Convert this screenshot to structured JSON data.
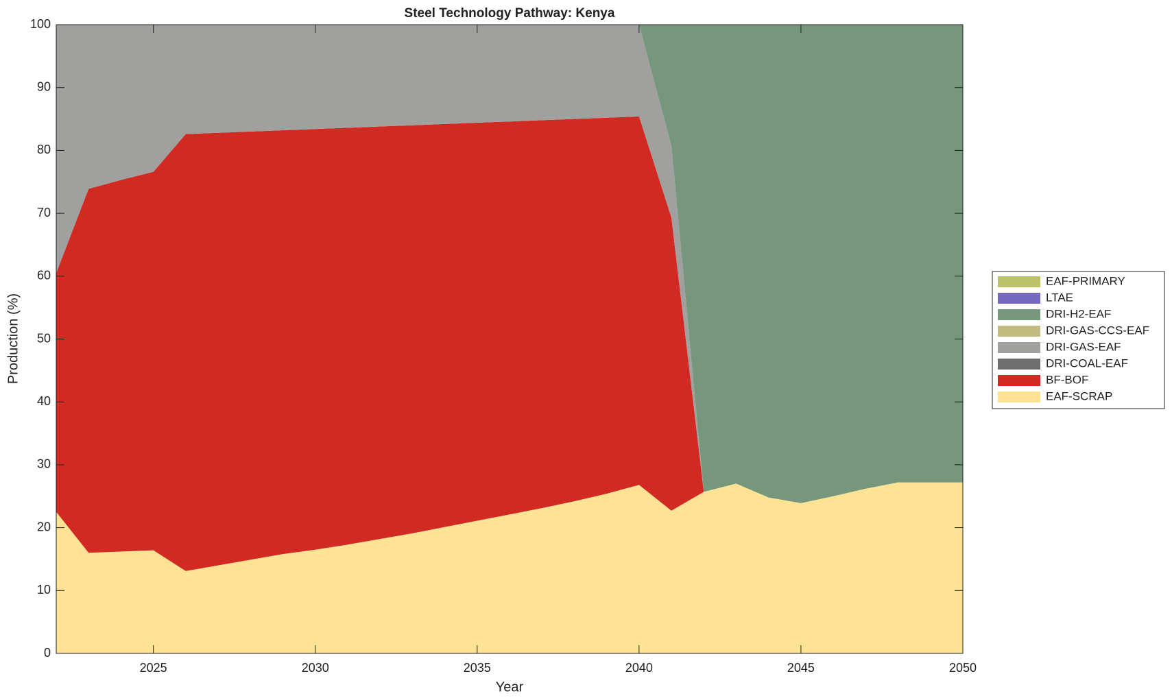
{
  "chart_data": {
    "type": "stacked_area",
    "title": "Steel Technology Pathway: Kenya",
    "xlabel": "Year",
    "ylabel": "Production (%)",
    "x": [
      2022,
      2023,
      2024,
      2025,
      2026,
      2027,
      2028,
      2029,
      2030,
      2031,
      2032,
      2033,
      2034,
      2035,
      2036,
      2037,
      2038,
      2039,
      2040,
      2041,
      2042,
      2043,
      2044,
      2045,
      2046,
      2047,
      2048,
      2049,
      2050
    ],
    "series": [
      {
        "name": "EAF-SCRAP",
        "color": "#fde393",
        "values": [
          22.5,
          16,
          16.2,
          16.4,
          13.1,
          14,
          14.9,
          15.8,
          16.5,
          17.3,
          18.2,
          19.1,
          20.1,
          21.1,
          22.1,
          23.1,
          24.2,
          25.4,
          26.8,
          22.7,
          25.7,
          27,
          24.8,
          23.9,
          25,
          26.2,
          27.2,
          27.2,
          27.2
        ]
      },
      {
        "name": "BF-BOF",
        "color": "#d12a23",
        "values": [
          38,
          57.9,
          59.1,
          60.2,
          69.5,
          68.8,
          68.1,
          67.4,
          66.9,
          66.3,
          65.6,
          64.9,
          64.1,
          63.3,
          62.5,
          61.7,
          60.8,
          59.8,
          58.6,
          46.6,
          0,
          0,
          0,
          0,
          0,
          0,
          0,
          0,
          0
        ]
      },
      {
        "name": "DRI-COAL-EAF",
        "color": "#6e6e6e",
        "values": [
          0,
          0,
          0,
          0,
          0,
          0,
          0,
          0,
          0,
          0,
          0,
          0,
          0,
          0,
          0,
          0,
          0,
          0,
          0,
          0,
          0,
          0,
          0,
          0,
          0,
          0,
          0,
          0,
          0
        ]
      },
      {
        "name": "DRI-GAS-EAF",
        "color": "#a0a09e",
        "values": [
          39.5,
          26.1,
          24.7,
          23.4,
          17.4,
          17.2,
          17,
          16.8,
          16.6,
          16.4,
          16.2,
          16,
          15.8,
          15.6,
          15.4,
          15.2,
          15,
          14.8,
          14.6,
          11.4,
          0,
          0,
          0,
          0,
          0,
          0,
          0,
          0,
          0
        ]
      },
      {
        "name": "DRI-GAS-CCS-EAF",
        "color": "#c3bc80",
        "values": [
          0,
          0,
          0,
          0,
          0,
          0,
          0,
          0,
          0,
          0,
          0,
          0,
          0,
          0,
          0,
          0,
          0,
          0,
          0,
          0,
          0,
          0,
          0,
          0,
          0,
          0,
          0,
          0,
          0
        ]
      },
      {
        "name": "DRI-H2-EAF",
        "color": "#76977c",
        "values": [
          0,
          0,
          0,
          0,
          0,
          0,
          0,
          0,
          0,
          0,
          0,
          0,
          0,
          0,
          0,
          0,
          0,
          0,
          0,
          19.3,
          74.3,
          73,
          75.2,
          76.1,
          75,
          73.8,
          72.8,
          72.8,
          72.8
        ]
      },
      {
        "name": "LTAE",
        "color": "#7468c0",
        "values": [
          0,
          0,
          0,
          0,
          0,
          0,
          0,
          0,
          0,
          0,
          0,
          0,
          0,
          0,
          0,
          0,
          0,
          0,
          0,
          0,
          0,
          0,
          0,
          0,
          0,
          0,
          0,
          0,
          0
        ]
      },
      {
        "name": "EAF-PRIMARY",
        "color": "#bcc266",
        "values": [
          0,
          0,
          0,
          0,
          0,
          0,
          0,
          0,
          0,
          0,
          0,
          0,
          0,
          0,
          0,
          0,
          0,
          0,
          0,
          0,
          0,
          0,
          0,
          0,
          0,
          0,
          0,
          0,
          0
        ]
      }
    ],
    "xlim": [
      2022,
      2050
    ],
    "xticks": [
      2025,
      2030,
      2035,
      2040,
      2045,
      2050
    ],
    "ylim": [
      0,
      100
    ],
    "yticks": [
      0,
      10,
      20,
      30,
      40,
      50,
      60,
      70,
      80,
      90,
      100
    ],
    "legend": "right"
  }
}
